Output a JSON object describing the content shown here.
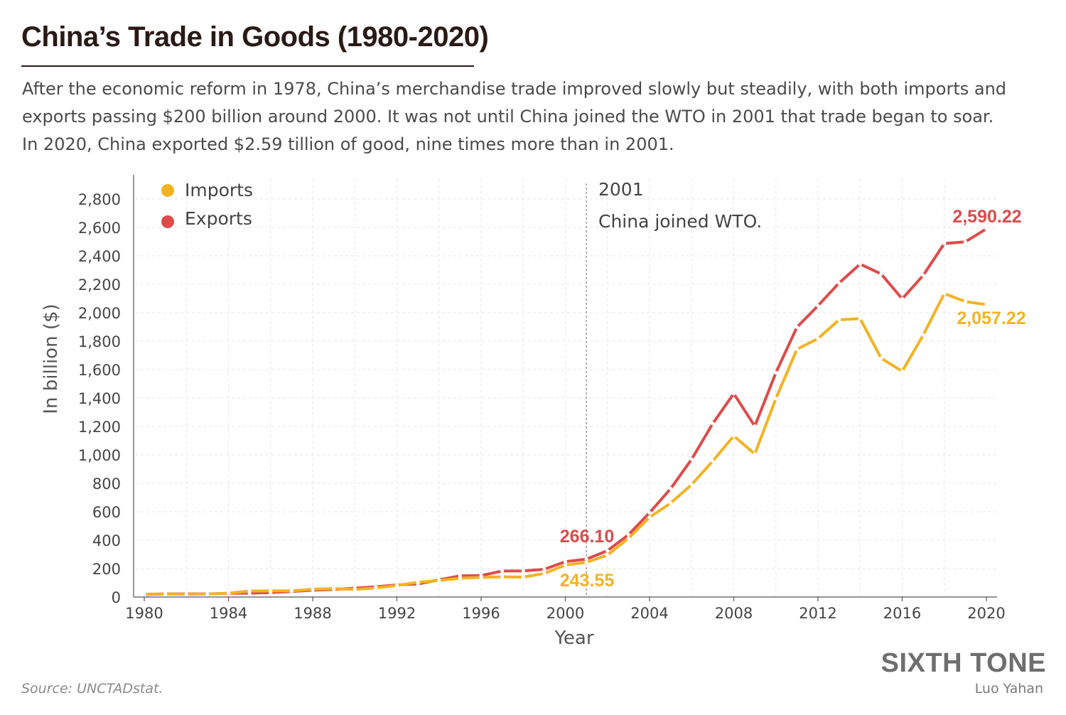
{
  "header": {
    "title": "China’s Trade in Goods (1980-2020)",
    "subtitle_lines": [
      "After the economic reform in 1978, China’s merchandise trade improved slowly but steadily, with both imports and",
      "exports passing $200 billion around 2000. It was not until China joined the WTO in 2001 that trade began to soar.",
      "In 2020, China exported $2.59 tillion of good,  nine times more than in 2001."
    ]
  },
  "footer": {
    "source": "Source: UNCTADstat.",
    "brand": "SIXTH TONE",
    "author": "Luo Yahan"
  },
  "colors": {
    "imports": "#f2b323",
    "exports": "#dd4b4b",
    "grid": "#e6e6e6",
    "axis": "#555555",
    "annotation_line": "#999999"
  },
  "chart_data": {
    "type": "line",
    "xlabel": "Year",
    "ylabel": "In billion ($)",
    "xlim": [
      1980,
      2020
    ],
    "ylim": [
      0,
      2800
    ],
    "xticks": [
      "1980",
      "1984",
      "1988",
      "1992",
      "1996",
      "2000",
      "2004",
      "2008",
      "2012",
      "2016",
      "2020"
    ],
    "yticks": [
      "0",
      "200",
      "400",
      "600",
      "800",
      "1,000",
      "1,200",
      "1,400",
      "1,600",
      "1,800",
      "2,000",
      "2,200",
      "2,400",
      "2,600",
      "2,800"
    ],
    "grid": true,
    "legend_position": "top-left",
    "x": [
      1980,
      1981,
      1982,
      1983,
      1984,
      1985,
      1986,
      1987,
      1988,
      1989,
      1990,
      1991,
      1992,
      1993,
      1994,
      1995,
      1996,
      1997,
      1998,
      1999,
      2000,
      2001,
      2002,
      2003,
      2004,
      2005,
      2006,
      2007,
      2008,
      2009,
      2010,
      2011,
      2012,
      2013,
      2014,
      2015,
      2016,
      2017,
      2018,
      2019,
      2020
    ],
    "series": [
      {
        "name": "Imports",
        "values": [
          20,
          22,
          19,
          21,
          27,
          42,
          43,
          43,
          55,
          59,
          53,
          64,
          81,
          104,
          116,
          132,
          139,
          142,
          140,
          166,
          225,
          243.55,
          295,
          413,
          561,
          660,
          791,
          956,
          1133,
          1006,
          1396,
          1743,
          1818,
          1950,
          1959,
          1680,
          1588,
          1843,
          2135,
          2078,
          2057.22
        ]
      },
      {
        "name": "Exports",
        "values": [
          18,
          22,
          22,
          22,
          26,
          27,
          31,
          39,
          48,
          53,
          62,
          72,
          85,
          92,
          121,
          149,
          151,
          183,
          184,
          195,
          249,
          266.1,
          326,
          438,
          593,
          762,
          969,
          1220,
          1431,
          1202,
          1578,
          1898,
          2049,
          2209,
          2342,
          2273,
          2098,
          2263,
          2487,
          2499,
          2590.22
        ]
      }
    ],
    "annotations": [
      {
        "x": 2001,
        "year_label": "2001",
        "text": "China joined WTO."
      }
    ],
    "data_labels": [
      {
        "series": "Exports",
        "x": 2001,
        "text": "266.10"
      },
      {
        "series": "Imports",
        "x": 2001,
        "text": "243.55"
      },
      {
        "series": "Exports",
        "x": 2020,
        "text": "2,590.22"
      },
      {
        "series": "Imports",
        "x": 2020,
        "text": "2,057.22"
      }
    ]
  }
}
